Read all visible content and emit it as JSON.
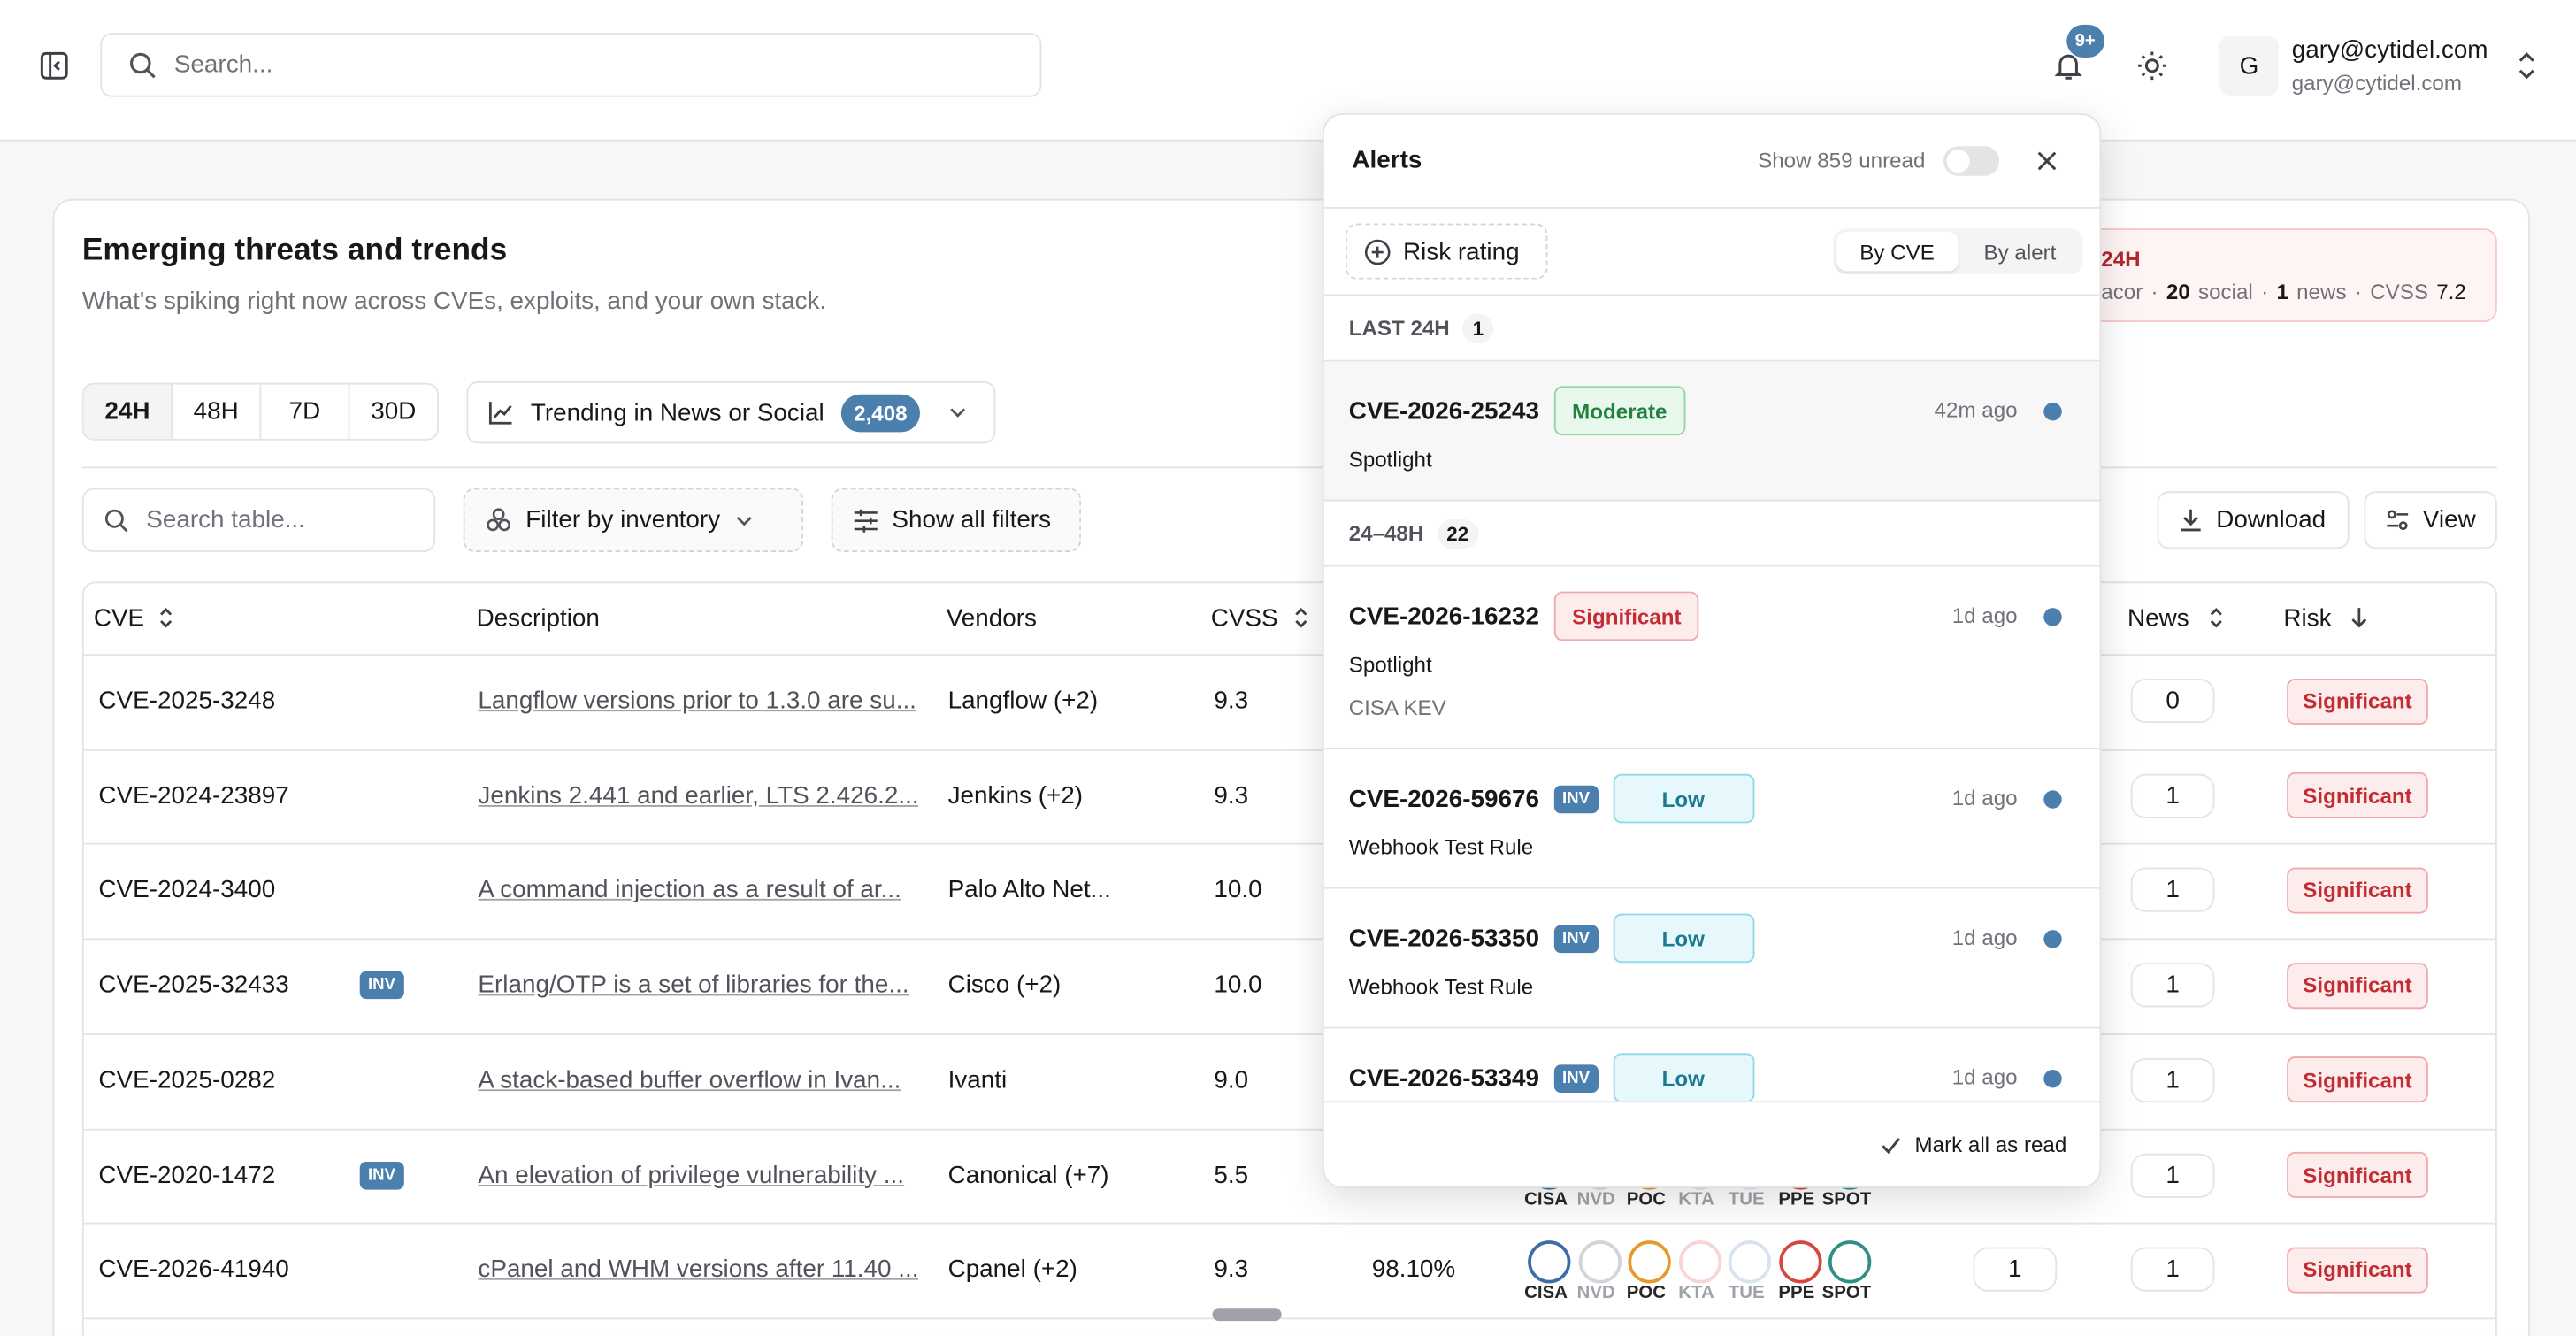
{
  "header": {
    "search_placeholder": "Search...",
    "notification_count": "9+",
    "user_initial": "G",
    "user_name": "gary@cytidel.com",
    "user_email": "gary@cytidel.com"
  },
  "panel": {
    "title": "Emerging threats and trends",
    "subtitle": "What's spiking right now across CVEs, exploits, and your own stack.",
    "time_ranges": [
      "24H",
      "48H",
      "7D",
      "30D"
    ],
    "trend_filter": {
      "label": "Trending in News or Social",
      "count": "2,408"
    }
  },
  "spike": {
    "label": "24H",
    "fragment": "acor",
    "social_count": "20",
    "social_label": "social",
    "news_count": "1",
    "news_label": "news",
    "cvss_label": "CVSS",
    "cvss": "7.2"
  },
  "table_controls": {
    "search_placeholder": "Search table...",
    "inventory_filter": "Filter by inventory",
    "all_filters": "Show all filters",
    "download": "Download",
    "view": "View"
  },
  "table": {
    "columns": {
      "cve": "CVE",
      "description": "Description",
      "vendors": "Vendors",
      "cvss": "CVSS",
      "news": "News",
      "risk": "Risk"
    },
    "rows": [
      {
        "cve": "CVE-2025-3248",
        "description": "Langflow versions prior to 1.3.0 are su...",
        "vendors": "Langflow (+2)",
        "cvss": "9.3",
        "news": "0",
        "risk": "Significant"
      },
      {
        "cve": "CVE-2024-23897",
        "description": "Jenkins 2.441 and earlier, LTS 2.426.2...",
        "vendors": "Jenkins (+2)",
        "cvss": "9.3",
        "news": "1",
        "risk": "Significant"
      },
      {
        "cve": "CVE-2024-3400",
        "description": "A command injection as a result of ar...",
        "vendors": "Palo Alto Net...",
        "cvss": "10.0",
        "news": "1",
        "risk": "Significant"
      },
      {
        "cve": "CVE-2025-32433",
        "inv": "INV",
        "description": "Erlang/OTP is a set of libraries for the...",
        "vendors": "Cisco (+2)",
        "cvss": "10.0",
        "news": "1",
        "risk": "Significant"
      },
      {
        "cve": "CVE-2025-0282",
        "description": "A stack-based buffer overflow in Ivan...",
        "vendors": "Ivanti",
        "cvss": "9.0",
        "news": "1",
        "risk": "Significant"
      },
      {
        "cve": "CVE-2020-1472",
        "inv": "INV",
        "description": "An elevation of privilege vulnerability ...",
        "vendors": "Canonical (+7)",
        "cvss": "5.5",
        "sources": [
          {
            "label": "CISA",
            "active": true
          },
          {
            "label": "NVD",
            "active": false
          },
          {
            "label": "POC",
            "active": true
          },
          {
            "label": "KTA",
            "active": false
          },
          {
            "label": "TUE",
            "active": false
          },
          {
            "label": "PPE",
            "active": true
          },
          {
            "label": "SPOT",
            "active": true
          }
        ],
        "news": "1",
        "risk": "Significant"
      },
      {
        "cve": "CVE-2026-41940",
        "description": "cPanel and WHM versions after 11.40 ...",
        "vendors": "Cpanel (+2)",
        "cvss": "9.3",
        "epss": "98.10%",
        "sources": [
          {
            "label": "CISA",
            "active": true
          },
          {
            "label": "NVD",
            "active": false
          },
          {
            "label": "POC",
            "active": true
          },
          {
            "label": "KTA",
            "active": false
          },
          {
            "label": "TUE",
            "active": false
          },
          {
            "label": "PPE",
            "active": true
          },
          {
            "label": "SPOT",
            "active": true
          }
        ],
        "count": "1",
        "news": "1",
        "risk": "Significant"
      }
    ]
  },
  "alerts": {
    "title": "Alerts",
    "unread_toggle": "Show 859 unread",
    "risk_rating": "Risk rating",
    "tabs": [
      "By CVE",
      "By alert"
    ],
    "groups": [
      {
        "label": "LAST 24H",
        "count": "1",
        "items": [
          {
            "cve": "CVE-2026-25243",
            "severity": "Moderate",
            "tone": "green",
            "time": "42m ago",
            "rule": "Spotlight"
          }
        ]
      },
      {
        "label": "24–48H",
        "count": "22",
        "items": [
          {
            "cve": "CVE-2026-16232",
            "severity": "Significant",
            "tone": "red",
            "time": "1d ago",
            "rule": "Spotlight",
            "note": "CISA KEV"
          },
          {
            "cve": "CVE-2026-59676",
            "inv": "INV",
            "severity": "Low",
            "tone": "cyan",
            "time": "1d ago",
            "rule": "Webhook Test Rule"
          },
          {
            "cve": "CVE-2026-53350",
            "inv": "INV",
            "severity": "Low",
            "tone": "cyan",
            "time": "1d ago",
            "rule": "Webhook Test Rule"
          },
          {
            "cve": "CVE-2026-53349",
            "inv": "INV",
            "severity": "Low",
            "tone": "cyan",
            "time": "1d ago"
          }
        ]
      }
    ],
    "mark_all": "Mark all as read"
  }
}
